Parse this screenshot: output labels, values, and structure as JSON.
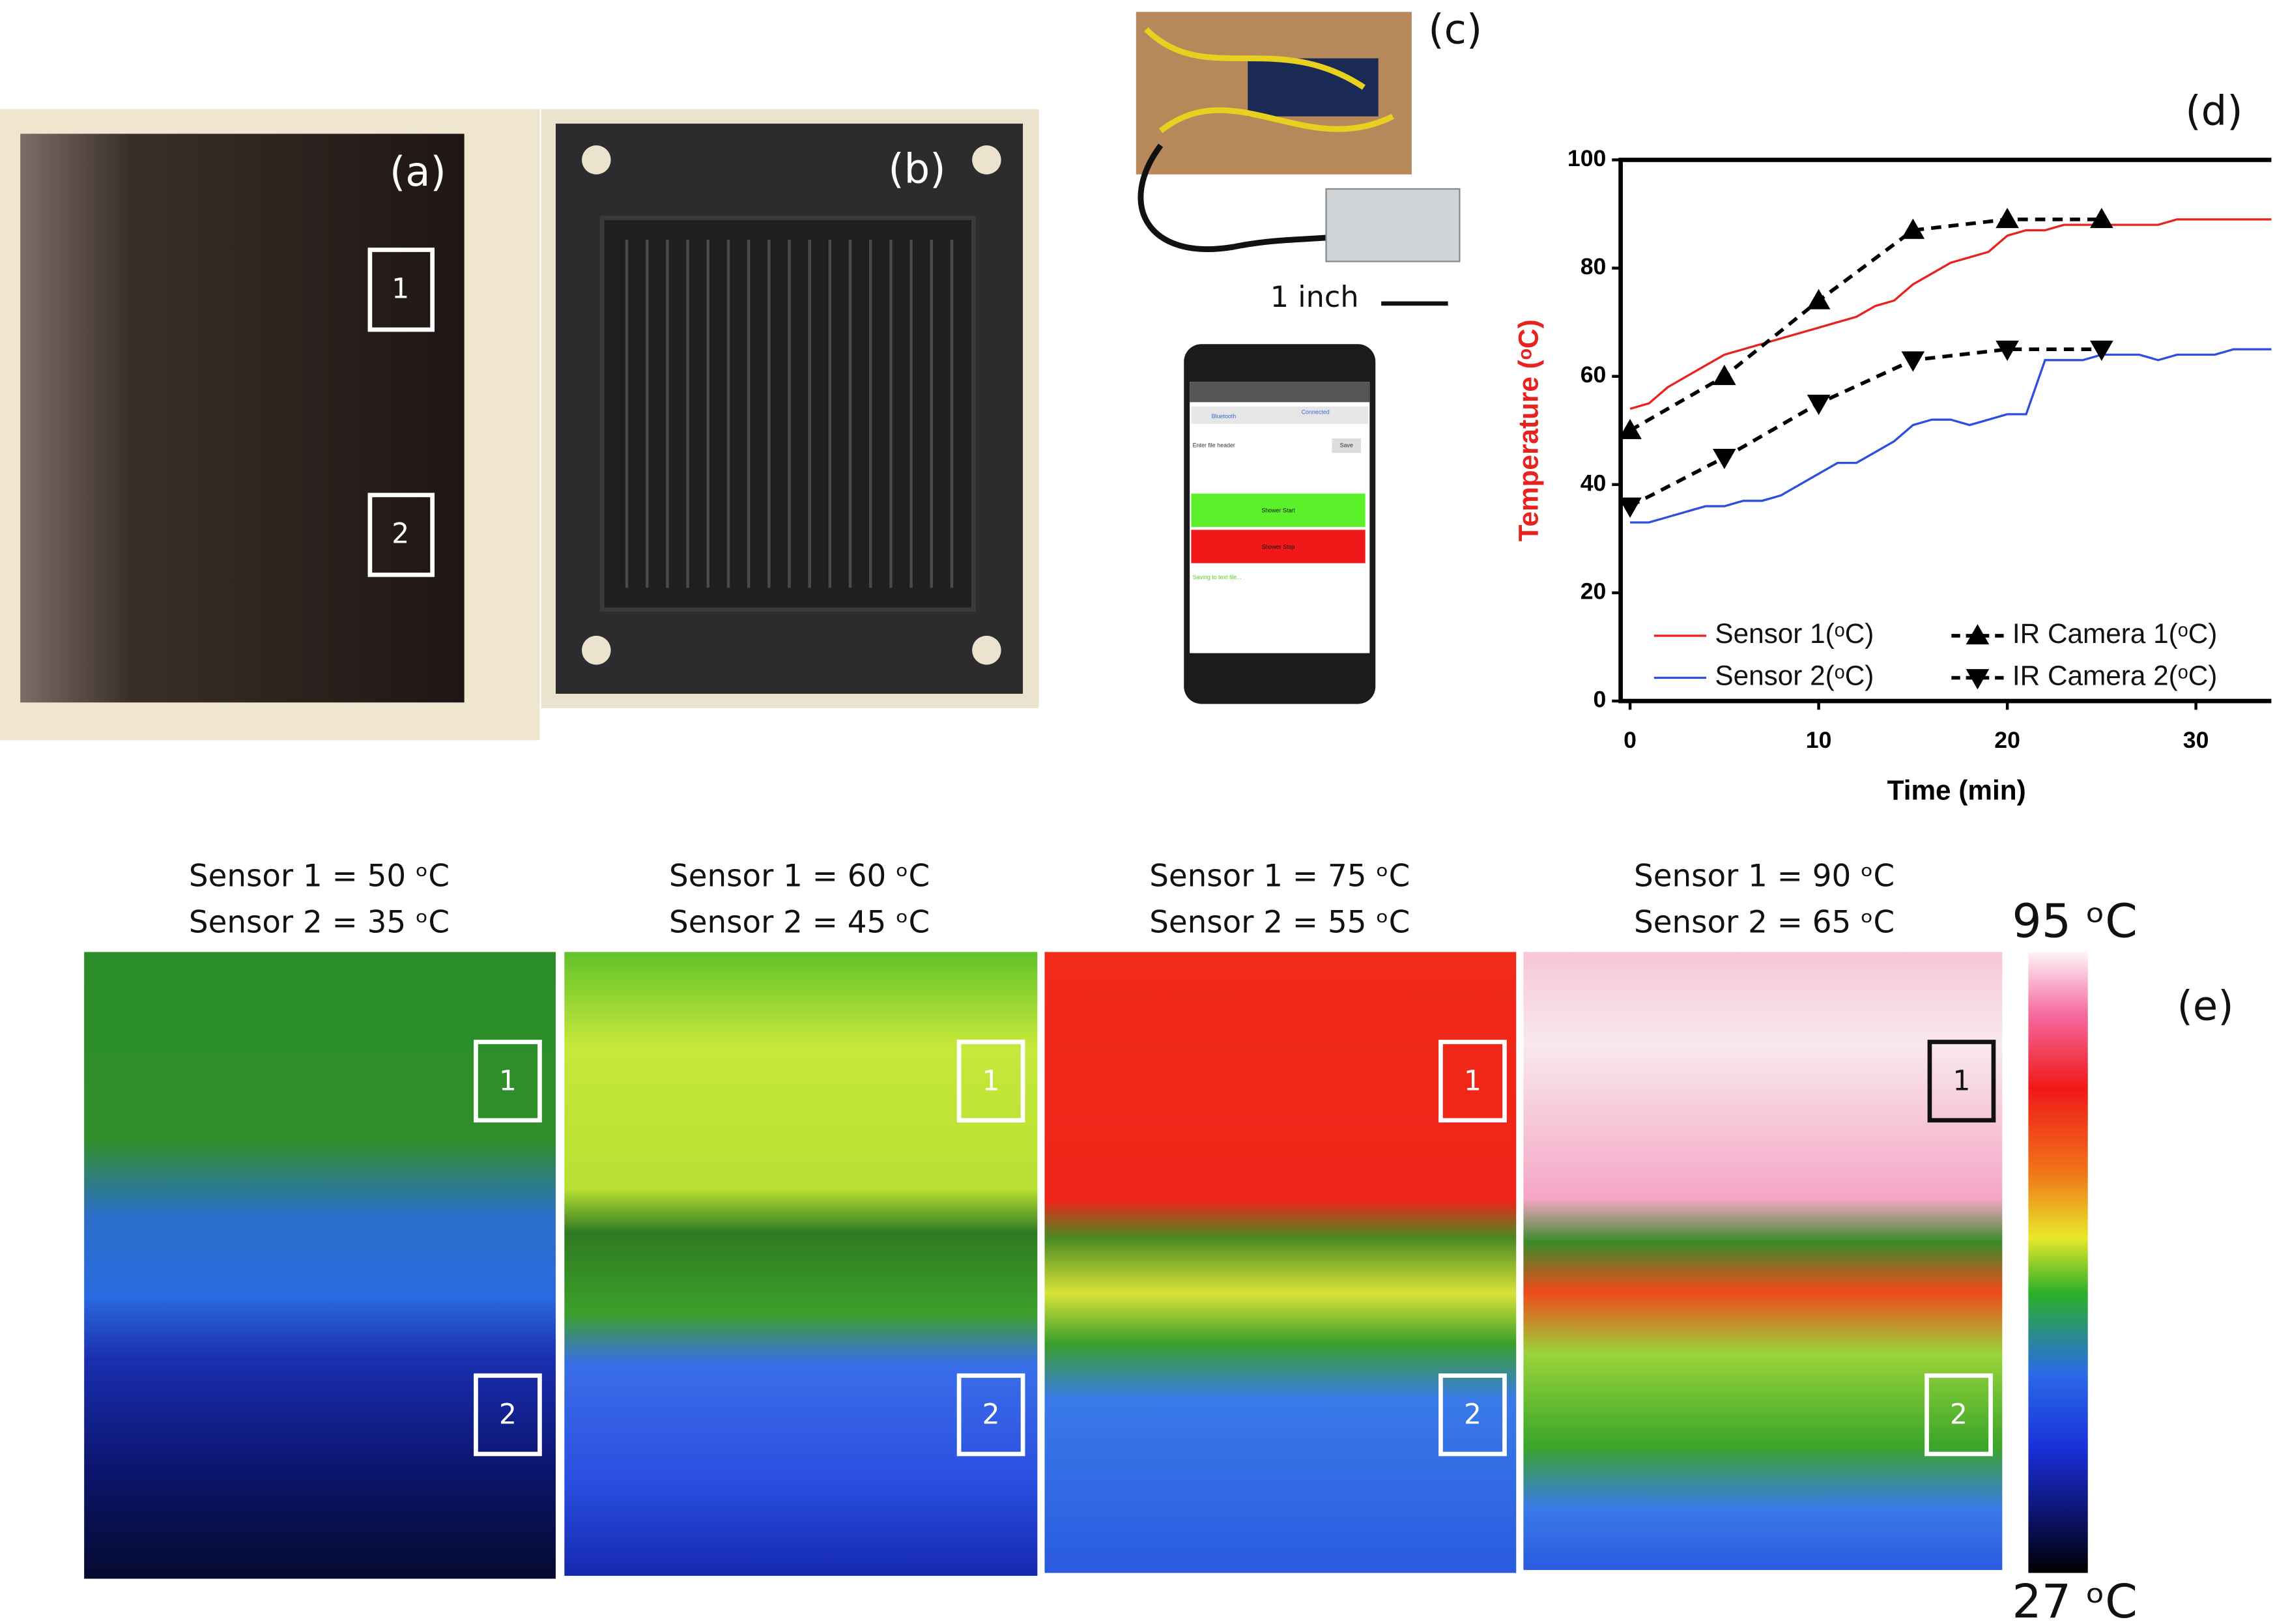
{
  "photos": {
    "fabric": {
      "label": "(a)",
      "boxes": [
        "1",
        "2"
      ]
    },
    "plate": {
      "label": "(b)"
    },
    "circuit": {
      "label": "(c)",
      "scale": "1 inch"
    },
    "phone": {
      "bluetooth": "Bluetooth",
      "status": "Connected",
      "header": "Enter file header",
      "save": "Save",
      "start": "Shower Start",
      "stop": "Shower Stop",
      "saving": "Saving to text file..."
    }
  },
  "chart_data": {
    "type": "line",
    "label": "(d)",
    "x_label": "Time (min)",
    "y_label": "Temperature (ᵒC)",
    "xlim": [
      -0.5,
      34
    ],
    "xticks": [
      0,
      10,
      20,
      30
    ],
    "ylim": [
      0,
      100
    ],
    "yticks": [
      0,
      20,
      40,
      60,
      80,
      100
    ],
    "legend": "bottom",
    "series": [
      {
        "name": "Sensor 1(ᵒC)",
        "color": "#e8231f",
        "style": "solid",
        "x": [
          0,
          1,
          2,
          3,
          4,
          5,
          6,
          7,
          8,
          9,
          10,
          11,
          12,
          13,
          14,
          15,
          16,
          17,
          18,
          19,
          20,
          21,
          22,
          23,
          24,
          25,
          26,
          27,
          28,
          29,
          30,
          31,
          32,
          33,
          34
        ],
        "values": [
          54,
          55,
          58,
          60,
          62,
          64,
          65,
          66,
          67,
          68,
          69,
          70,
          71,
          73,
          74,
          77,
          79,
          81,
          82,
          83,
          86,
          87,
          87,
          88,
          88,
          88,
          88,
          88,
          88,
          89,
          89,
          89,
          89,
          89,
          89
        ]
      },
      {
        "name": "Sensor 2(ᵒC)",
        "color": "#2c4fe0",
        "style": "solid",
        "x": [
          0,
          1,
          2,
          3,
          4,
          5,
          6,
          7,
          8,
          9,
          10,
          11,
          12,
          13,
          14,
          15,
          16,
          17,
          18,
          19,
          20,
          21,
          22,
          23,
          24,
          25,
          26,
          27,
          28,
          29,
          30,
          31,
          32,
          33,
          34
        ],
        "values": [
          33,
          33,
          34,
          35,
          36,
          36,
          37,
          37,
          38,
          40,
          42,
          44,
          44,
          46,
          48,
          51,
          52,
          52,
          51,
          52,
          53,
          53,
          63,
          63,
          63,
          64,
          64,
          64,
          63,
          64,
          64,
          64,
          65,
          65,
          65
        ]
      },
      {
        "name": "IR Camera 1(ᵒC)",
        "color": "#000000",
        "style": "dashed",
        "marker": "up",
        "x": [
          0,
          5,
          10,
          15,
          20,
          25
        ],
        "values": [
          50,
          60,
          74,
          87,
          89,
          89
        ]
      },
      {
        "name": "IR Camera 2(ᵒC)",
        "color": "#000000",
        "style": "dashed",
        "marker": "down",
        "x": [
          0,
          5,
          10,
          15,
          20,
          25
        ],
        "values": [
          36,
          45,
          55,
          63,
          65,
          65
        ]
      }
    ]
  },
  "thermal": {
    "label": "(e)",
    "panels": [
      {
        "caption": [
          "Sensor 1 = 50 ᵒC",
          "Sensor 2 = 35 ᵒC"
        ],
        "boxes": [
          "1",
          "2"
        ]
      },
      {
        "caption": [
          "Sensor 1 = 60 ᵒC",
          "Sensor 2 = 45 ᵒC"
        ],
        "boxes": [
          "1",
          "2"
        ]
      },
      {
        "caption": [
          "Sensor 1 = 75 ᵒC",
          "Sensor 2 = 55 ᵒC"
        ],
        "boxes": [
          "1",
          "2"
        ]
      },
      {
        "caption": [
          "Sensor 1 = 90 ᵒC",
          "Sensor 2 = 65 ᵒC"
        ],
        "boxes": [
          "1",
          "2"
        ]
      }
    ],
    "colorbar": {
      "max": "95 ᵒC",
      "min": "27 ᵒC"
    }
  }
}
